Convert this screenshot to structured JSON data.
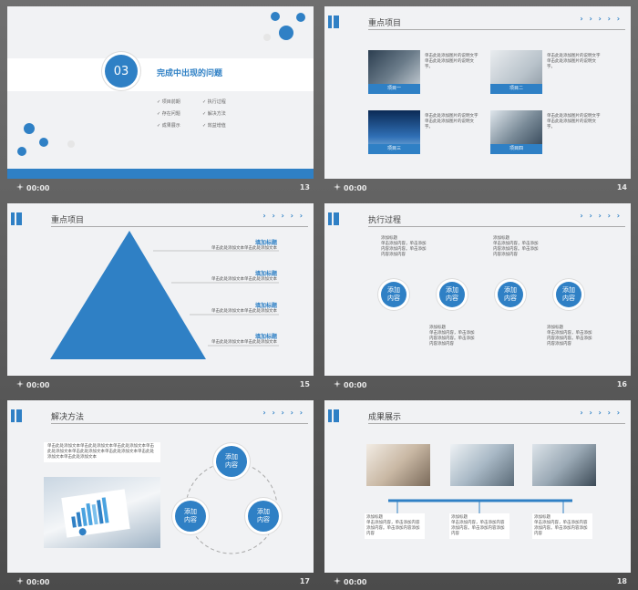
{
  "colors": {
    "accent": "#2f80c5",
    "background": "#5e5e5e",
    "slide": "#f1f2f4"
  },
  "arrows": "› › › › ›",
  "slides": [
    {
      "number": "13",
      "time": "00:00",
      "section_num": "03",
      "section_title": "完成中出现的问题",
      "bullets": [
        "✓ 项目前期",
        "✓ 执行过程",
        "✓ 存在问题",
        "✓ 解决方法",
        "✓ 成果展示",
        "✓ 效益增值"
      ]
    },
    {
      "number": "14",
      "time": "00:00",
      "title": "重点项目",
      "items": [
        {
          "caption": "项目一",
          "text": "单击此处添加图片的说明文字单击此处添加图片的说明文字。"
        },
        {
          "caption": "项目二",
          "text": "单击此处添加图片的说明文字单击此处添加图片的说明文字。"
        },
        {
          "caption": "项目三",
          "text": "单击此处添加图片的说明文字单击此处添加图片的说明文字。"
        },
        {
          "caption": "项目四",
          "text": "单击此处添加图片的说明文字单击此处添加图片的说明文字。"
        }
      ]
    },
    {
      "number": "15",
      "time": "00:00",
      "title": "重点项目",
      "rows": [
        {
          "label": "填加标题",
          "text": "单击此处添加文本单击此处添加文本"
        },
        {
          "label": "填加标题",
          "text": "单击此处添加文本单击此处添加文本"
        },
        {
          "label": "填加标题",
          "text": "单击此处添加文本单击此处添加文本"
        },
        {
          "label": "填加标题",
          "text": "单击此处添加文本单击此处添加文本"
        }
      ]
    },
    {
      "number": "16",
      "time": "00:00",
      "title": "执行过程",
      "circle_label": "添加内容",
      "note_title": "添加标题",
      "note_text": "单击添加内容，单击添加内容添加内容。单击添加内容添加内容"
    },
    {
      "number": "17",
      "time": "00:00",
      "title": "解决方法",
      "paragraph": "单击此处添加文本单击此处添加文本单击此处添加文本单击此处添加文本单击此处添加文本单击此处添加文本单击此处添加文本单击此处添加文本",
      "circle_label": "添加内容"
    },
    {
      "number": "18",
      "time": "00:00",
      "title": "成果展示",
      "note_title": "添加标题",
      "note_text": "单击添加内容，单击添加内容添加内容。单击添加内容添加内容"
    }
  ]
}
